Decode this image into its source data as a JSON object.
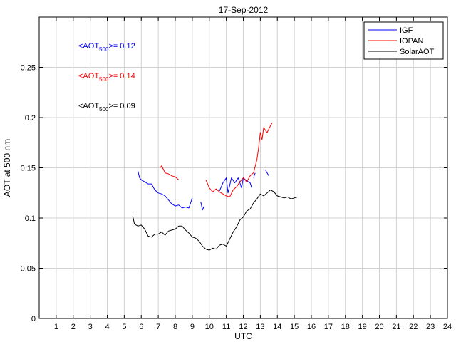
{
  "chart_data": {
    "type": "line",
    "title": "17-Sep-2012",
    "xlabel": "UTC",
    "ylabel": "AOT at 500 nm",
    "xlim": [
      0,
      24
    ],
    "ylim": [
      0,
      0.3
    ],
    "grid": true,
    "x_ticks": [
      "1",
      "2",
      "3",
      "4",
      "5",
      "6",
      "7",
      "8",
      "9",
      "10",
      "11",
      "12",
      "13",
      "14",
      "15",
      "16",
      "17",
      "18",
      "19",
      "20",
      "21",
      "22",
      "23",
      "24"
    ],
    "y_ticks": [
      {
        "value": 0,
        "label": "0"
      },
      {
        "value": 0.05,
        "label": "0.05"
      },
      {
        "value": 0.1,
        "label": "0.1"
      },
      {
        "value": 0.15,
        "label": "0.15"
      },
      {
        "value": 0.2,
        "label": "0.2"
      },
      {
        "value": 0.25,
        "label": "0.25"
      }
    ],
    "legend_position": "top-right",
    "annotations": [
      {
        "prefix": "<AOT",
        "sub": "500",
        "suffix": ">= 0.12",
        "color": "#0000ff"
      },
      {
        "prefix": "<AOT",
        "sub": "500",
        "suffix": ">= 0.14",
        "color": "#ff0000"
      },
      {
        "prefix": "<AOT",
        "sub": "500",
        "suffix": ">= 0.09",
        "color": "#000000"
      }
    ],
    "series": [
      {
        "name": "IGF",
        "color": "#0000ff",
        "segments": [
          [
            [
              5.8,
              0.147
            ],
            [
              5.9,
              0.14
            ],
            [
              6.0,
              0.138
            ],
            [
              6.2,
              0.136
            ],
            [
              6.4,
              0.134
            ],
            [
              6.6,
              0.134
            ],
            [
              6.8,
              0.128
            ],
            [
              7.0,
              0.125
            ],
            [
              7.2,
              0.124
            ],
            [
              7.4,
              0.122
            ],
            [
              7.6,
              0.118
            ],
            [
              7.8,
              0.114
            ],
            [
              8.0,
              0.112
            ],
            [
              8.2,
              0.113
            ],
            [
              8.4,
              0.11
            ],
            [
              8.6,
              0.111
            ],
            [
              8.8,
              0.11
            ],
            [
              9.0,
              0.12
            ]
          ],
          [
            [
              9.5,
              0.116
            ],
            [
              9.6,
              0.108
            ],
            [
              9.7,
              0.112
            ]
          ],
          [
            [
              10.6,
              0.127
            ],
            [
              10.8,
              0.135
            ],
            [
              11.0,
              0.14
            ],
            [
              11.1,
              0.125
            ],
            [
              11.3,
              0.14
            ],
            [
              11.5,
              0.135
            ],
            [
              11.7,
              0.14
            ],
            [
              11.9,
              0.13
            ],
            [
              12.0,
              0.14
            ],
            [
              12.2,
              0.137
            ],
            [
              12.4,
              0.135
            ],
            [
              12.5,
              0.13
            ]
          ],
          [
            [
              12.6,
              0.14
            ],
            [
              12.7,
              0.145
            ]
          ],
          [
            [
              13.3,
              0.148
            ],
            [
              13.4,
              0.145
            ],
            [
              13.5,
              0.142
            ]
          ]
        ]
      },
      {
        "name": "IOPAN",
        "color": "#ff0000",
        "segments": [
          [
            [
              7.1,
              0.15
            ],
            [
              7.2,
              0.152
            ],
            [
              7.4,
              0.145
            ],
            [
              7.6,
              0.144
            ],
            [
              7.8,
              0.142
            ],
            [
              8.0,
              0.141
            ],
            [
              8.2,
              0.138
            ]
          ],
          [
            [
              9.8,
              0.138
            ],
            [
              10.0,
              0.13
            ],
            [
              10.2,
              0.126
            ],
            [
              10.4,
              0.129
            ],
            [
              10.6,
              0.126
            ],
            [
              10.8,
              0.124
            ],
            [
              11.0,
              0.122
            ],
            [
              11.2,
              0.121
            ],
            [
              11.4,
              0.128
            ],
            [
              11.6,
              0.131
            ],
            [
              11.8,
              0.136
            ],
            [
              12.0,
              0.14
            ],
            [
              12.2,
              0.136
            ],
            [
              12.4,
              0.142
            ],
            [
              12.6,
              0.145
            ],
            [
              12.8,
              0.158
            ],
            [
              12.9,
              0.17
            ],
            [
              13.0,
              0.185
            ],
            [
              13.1,
              0.178
            ],
            [
              13.2,
              0.19
            ],
            [
              13.4,
              0.185
            ],
            [
              13.6,
              0.192
            ],
            [
              13.7,
              0.195
            ]
          ]
        ]
      },
      {
        "name": "SolarAOT",
        "color": "#000000",
        "segments": [
          [
            [
              5.5,
              0.102
            ],
            [
              5.6,
              0.094
            ],
            [
              5.8,
              0.092
            ],
            [
              6.0,
              0.093
            ],
            [
              6.2,
              0.089
            ],
            [
              6.4,
              0.082
            ],
            [
              6.6,
              0.081
            ],
            [
              6.8,
              0.084
            ],
            [
              7.0,
              0.084
            ],
            [
              7.2,
              0.086
            ],
            [
              7.4,
              0.083
            ],
            [
              7.6,
              0.087
            ],
            [
              7.8,
              0.088
            ],
            [
              8.0,
              0.089
            ],
            [
              8.2,
              0.092
            ],
            [
              8.4,
              0.092
            ],
            [
              8.6,
              0.088
            ],
            [
              8.8,
              0.085
            ],
            [
              9.0,
              0.081
            ],
            [
              9.2,
              0.08
            ],
            [
              9.4,
              0.077
            ],
            [
              9.6,
              0.072
            ],
            [
              9.8,
              0.069
            ],
            [
              10.0,
              0.068
            ],
            [
              10.2,
              0.07
            ],
            [
              10.4,
              0.069
            ],
            [
              10.6,
              0.073
            ],
            [
              10.8,
              0.074
            ],
            [
              11.0,
              0.072
            ],
            [
              11.2,
              0.079
            ],
            [
              11.4,
              0.086
            ],
            [
              11.6,
              0.091
            ],
            [
              11.8,
              0.098
            ],
            [
              12.0,
              0.101
            ],
            [
              12.2,
              0.107
            ],
            [
              12.4,
              0.109
            ],
            [
              12.6,
              0.115
            ],
            [
              12.8,
              0.119
            ],
            [
              13.0,
              0.124
            ],
            [
              13.2,
              0.122
            ],
            [
              13.4,
              0.125
            ],
            [
              13.6,
              0.128
            ],
            [
              13.8,
              0.126
            ],
            [
              14.0,
              0.122
            ],
            [
              14.2,
              0.121
            ],
            [
              14.4,
              0.12
            ],
            [
              14.6,
              0.121
            ],
            [
              14.8,
              0.119
            ],
            [
              15.0,
              0.12
            ],
            [
              15.2,
              0.121
            ]
          ]
        ]
      }
    ]
  }
}
